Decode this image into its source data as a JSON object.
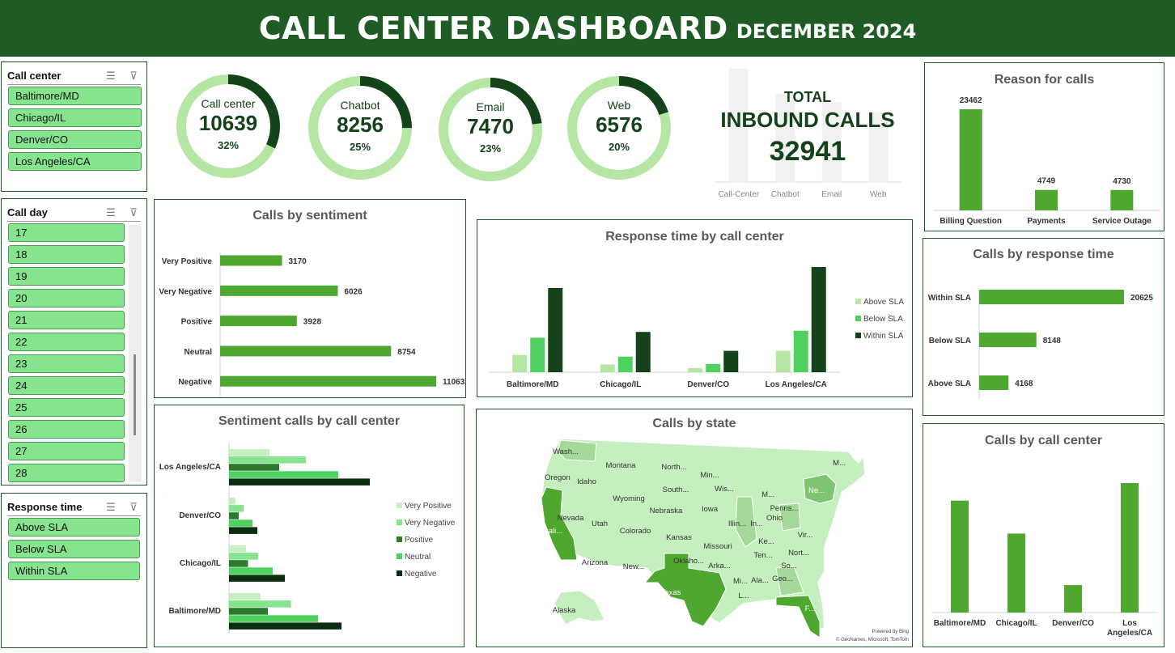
{
  "header": {
    "title": "CALL CENTER DASHBOARD",
    "subtitle": "DECEMBER 2024"
  },
  "slicers": {
    "call_center": {
      "title": "Call center",
      "items": [
        "Baltimore/MD",
        "Chicago/IL",
        "Denver/CO",
        "Los Angeles/CA"
      ]
    },
    "call_day": {
      "title": "Call day",
      "items": [
        "17",
        "18",
        "19",
        "20",
        "21",
        "22",
        "23",
        "24",
        "25",
        "26",
        "27",
        "28"
      ]
    },
    "response_time": {
      "title": "Response time",
      "items": [
        "Above SLA",
        "Below SLA",
        "Within SLA"
      ]
    }
  },
  "kpis": [
    {
      "label": "Call center",
      "value": "10639",
      "pct": "32%",
      "fraction": 0.32
    },
    {
      "label": "Chatbot",
      "value": "8256",
      "pct": "25%",
      "fraction": 0.25
    },
    {
      "label": "Email",
      "value": "7470",
      "pct": "23%",
      "fraction": 0.23
    },
    {
      "label": "Web",
      "value": "6576",
      "pct": "20%",
      "fraction": 0.2
    }
  ],
  "total": {
    "line1": "TOTAL",
    "line2": "INBOUND CALLS",
    "value": "32941"
  },
  "colors": {
    "header": "#1f5b25",
    "dark": "#14421a",
    "mid": "#4ea72e",
    "light": "#b5e6a3",
    "bright": "#4fd160",
    "lighter": "#c6efc0"
  },
  "chart_data": [
    {
      "id": "channels_bg",
      "type": "bar",
      "categories": [
        "Call-Center",
        "Chatbot",
        "Email",
        "Web"
      ],
      "values": [
        10639,
        8256,
        7470,
        6576
      ]
    },
    {
      "id": "reason",
      "type": "bar",
      "title": "Reason for calls",
      "categories": [
        "Billing Question",
        "Payments",
        "Service Outage"
      ],
      "values": [
        23462,
        4749,
        4730
      ]
    },
    {
      "id": "sentiment",
      "type": "bar",
      "title": "Calls by sentiment",
      "categories": [
        "Very Positive",
        "Very Negative",
        "Positive",
        "Neutral",
        "Negative"
      ],
      "values": [
        3170,
        6026,
        3928,
        8754,
        11063
      ]
    },
    {
      "id": "response_by_center",
      "type": "bar",
      "title": "Response time by call center",
      "categories": [
        "Baltimore/MD",
        "Chicago/IL",
        "Denver/CO",
        "Los Angeles/CA"
      ],
      "series": [
        {
          "name": "Above SLA",
          "values": [
            420,
            190,
            100,
            520
          ]
        },
        {
          "name": "Below SLA",
          "values": [
            840,
            380,
            200,
            1010
          ]
        },
        {
          "name": "Within SLA",
          "values": [
            2050,
            980,
            520,
            2560
          ]
        }
      ]
    },
    {
      "id": "response_time",
      "type": "bar",
      "title": "Calls by response time",
      "categories": [
        "Within SLA",
        "Below SLA",
        "Above SLA"
      ],
      "values": [
        20625,
        8148,
        4168
      ]
    },
    {
      "id": "sentiment_by_center",
      "type": "bar",
      "title": "Sentiment calls by call center",
      "categories": [
        "Los Angeles/CA",
        "Denver/CO",
        "Chicago/IL",
        "Baltimore/MD"
      ],
      "series": [
        {
          "name": "Very Positive",
          "values": [
            1000,
            160,
            420,
            780
          ]
        },
        {
          "name": "Very Negative",
          "values": [
            1900,
            360,
            720,
            1530
          ]
        },
        {
          "name": "Positive",
          "values": [
            1240,
            240,
            470,
            960
          ]
        },
        {
          "name": "Neutral",
          "values": [
            2700,
            580,
            1080,
            2200
          ]
        },
        {
          "name": "Negative",
          "values": [
            3480,
            700,
            1380,
            2780
          ]
        }
      ]
    },
    {
      "id": "calls_by_center",
      "type": "bar",
      "title": "Calls by call center",
      "categories": [
        "Baltimore/MD",
        "Chicago/IL",
        "Denver/CO",
        "Los Angeles/CA"
      ],
      "values": [
        10200,
        7200,
        2500,
        11800
      ]
    }
  ],
  "map": {
    "title": "Calls by state",
    "credit1": "Powered by Bing",
    "credit2": "© GeoNames, Microsoft, TomTom",
    "labels": [
      "Wash...",
      "Montana",
      "North...",
      "Min...",
      "M...",
      "Oregon",
      "Idaho",
      "Wis...",
      "South...",
      "Wyoming",
      "Ne...",
      "M...",
      "Penns...",
      "Nebraska",
      "Iowa",
      "Ohio",
      "Nevada",
      "Cali...",
      "Utah",
      "Colorado",
      "Illin...",
      "In...",
      "Kansas",
      "Ke...",
      "Vir...",
      "Missouri",
      "Nort...",
      "Arizona",
      "Oklaho...",
      "New...",
      "Arka...",
      "Ten...",
      "So...",
      "Geo...",
      "Ala...",
      "Mi...",
      "Texas",
      "L...",
      "F...",
      "Alaska"
    ]
  }
}
